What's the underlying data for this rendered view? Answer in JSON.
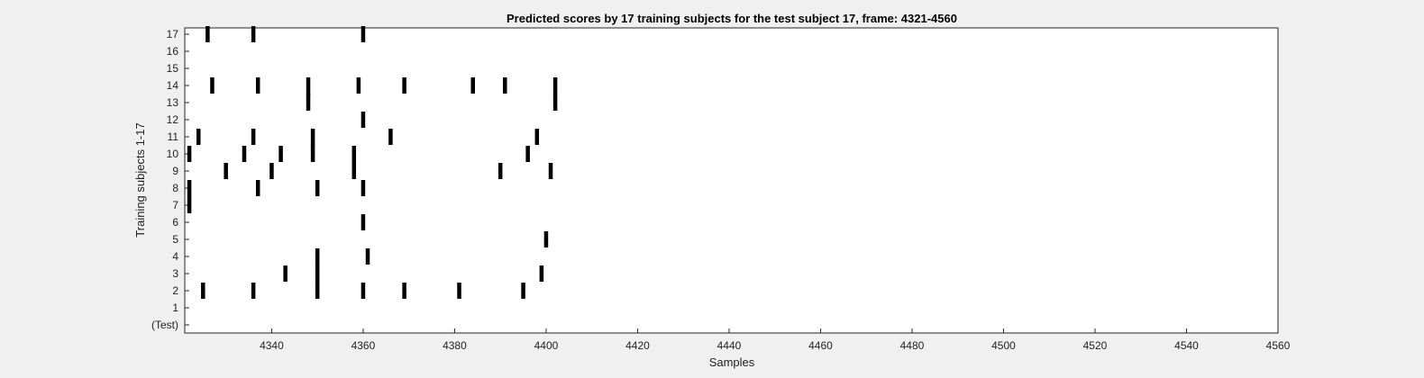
{
  "chart_data": {
    "type": "scatter",
    "title": "Predicted scores by 17 training subjects for the test subject 17, frame: 4321-4560",
    "xlabel": "Samples",
    "ylabel": "Training subjects 1-17",
    "xlim": [
      4321,
      4560
    ],
    "x_ticks": [
      4340,
      4360,
      4380,
      4400,
      4420,
      4440,
      4460,
      4480,
      4500,
      4520,
      4540,
      4560
    ],
    "y_categories": [
      "(Test)",
      "1",
      "2",
      "3",
      "4",
      "5",
      "6",
      "7",
      "8",
      "9",
      "10",
      "11",
      "12",
      "13",
      "14",
      "15",
      "16",
      "17"
    ],
    "marker": "vertical-bar",
    "grid": false,
    "legend": "none",
    "colors": {
      "marks": "#000000",
      "plot_background": "#ffffff",
      "figure_background": "#f0f0f0"
    },
    "series": [
      {
        "subject": "17",
        "x": [
          4326,
          4336,
          4360
        ]
      },
      {
        "subject": "16",
        "x": []
      },
      {
        "subject": "15",
        "x": []
      },
      {
        "subject": "14",
        "x": [
          4327,
          4337,
          4348,
          4359,
          4369,
          4384,
          4391,
          4402
        ]
      },
      {
        "subject": "13",
        "x": [
          4348,
          4402
        ]
      },
      {
        "subject": "12",
        "x": [
          4360
        ]
      },
      {
        "subject": "11",
        "x": [
          4324,
          4336,
          4349,
          4366,
          4398
        ]
      },
      {
        "subject": "10",
        "x": [
          4322,
          4334,
          4342,
          4349,
          4358,
          4396
        ]
      },
      {
        "subject": "9",
        "x": [
          4330,
          4340,
          4358,
          4390,
          4401
        ]
      },
      {
        "subject": "8",
        "x": [
          4322,
          4337,
          4350,
          4360
        ]
      },
      {
        "subject": "7",
        "x": [
          4322
        ]
      },
      {
        "subject": "6",
        "x": [
          4360
        ]
      },
      {
        "subject": "5",
        "x": [
          4400
        ]
      },
      {
        "subject": "4",
        "x": [
          4350,
          4361
        ]
      },
      {
        "subject": "3",
        "x": [
          4343,
          4350,
          4399
        ]
      },
      {
        "subject": "2",
        "x": [
          4325,
          4336,
          4350,
          4360,
          4369,
          4381,
          4395
        ]
      },
      {
        "subject": "1",
        "x": []
      },
      {
        "subject": "(Test)",
        "x": []
      }
    ]
  }
}
